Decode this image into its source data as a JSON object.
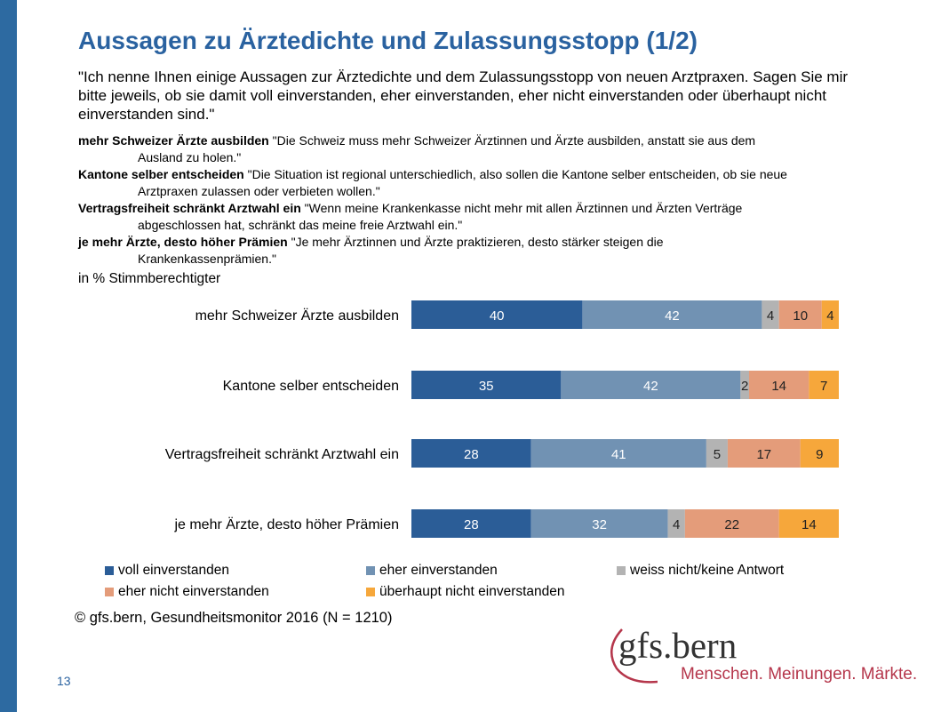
{
  "title": "Aussagen zu Ärztedichte und Zulassungsstopp (1/2)",
  "question": "\"Ich nenne Ihnen einige Aussagen zur Ärztedichte und dem Zulassungsstopp von neuen Arztpraxen. Sagen Sie mir bitte jeweils, ob sie damit voll einverstanden, eher einverstanden, eher nicht einverstanden oder überhaupt nicht einverstanden sind.\"",
  "definitions": [
    {
      "key": "mehr Schweizer Ärzte ausbilden",
      "line1": " \"Die Schweiz muss mehr Schweizer Ärztinnen und Ärzte ausbilden, anstatt sie aus dem",
      "line2": "Ausland zu holen.\""
    },
    {
      "key": "Kantone selber entscheiden",
      "line1": " \"Die Situation ist regional unterschiedlich, also sollen die Kantone selber entscheiden, ob sie neue",
      "line2": "Arztpraxen zulassen oder verbieten wollen.\""
    },
    {
      "key": "Vertragsfreiheit schränkt Arztwahl ein",
      "line1": " \"Wenn meine Krankenkasse nicht mehr mit allen Ärztinnen und Ärzten Verträge",
      "line2": "abgeschlossen hat, schränkt das meine freie Arztwahl ein.\""
    },
    {
      "key": "je mehr Ärzte, desto höher Prämien",
      "line1": " \"Je mehr Ärztinnen und Ärzte praktizieren, desto stärker steigen die",
      "line2": "Krankenkassenprämien.\""
    }
  ],
  "unit_label": "in % Stimmberechtigter",
  "chart_data": {
    "type": "bar",
    "orientation": "horizontal",
    "stacked": true,
    "xlim": [
      0,
      100
    ],
    "categories": [
      "mehr Schweizer Ärzte ausbilden",
      "Kantone selber entscheiden",
      "Vertragsfreiheit schränkt Arztwahl ein",
      "je mehr Ärzte, desto höher Prämien"
    ],
    "series": [
      {
        "name": "voll einverstanden",
        "color": "#2b5d97",
        "text_color": "#ffffff",
        "values": [
          40,
          35,
          28,
          28
        ]
      },
      {
        "name": "eher einverstanden",
        "color": "#7192b3",
        "text_color": "#ffffff",
        "values": [
          42,
          42,
          41,
          32
        ]
      },
      {
        "name": "weiss nicht/keine Antwort",
        "color": "#b3b3b3",
        "text_color": "#222222",
        "values": [
          4,
          2,
          5,
          4
        ]
      },
      {
        "name": "eher nicht einverstanden",
        "color": "#e49c7a",
        "text_color": "#222222",
        "values": [
          10,
          14,
          17,
          22
        ]
      },
      {
        "name": "überhaupt nicht einverstanden",
        "color": "#f6a73b",
        "text_color": "#222222",
        "values": [
          4,
          7,
          9,
          14
        ]
      }
    ],
    "legend_position": "bottom"
  },
  "source": "© gfs.bern, Gesundheitsmonitor 2016 (N = 1210)",
  "page_number": "13",
  "logo": {
    "name": "gfs.bern",
    "tagline": "Menschen. Meinungen. Märkte."
  },
  "colors": {
    "accent": "#2a62a0",
    "logo_red": "#b5364b"
  }
}
